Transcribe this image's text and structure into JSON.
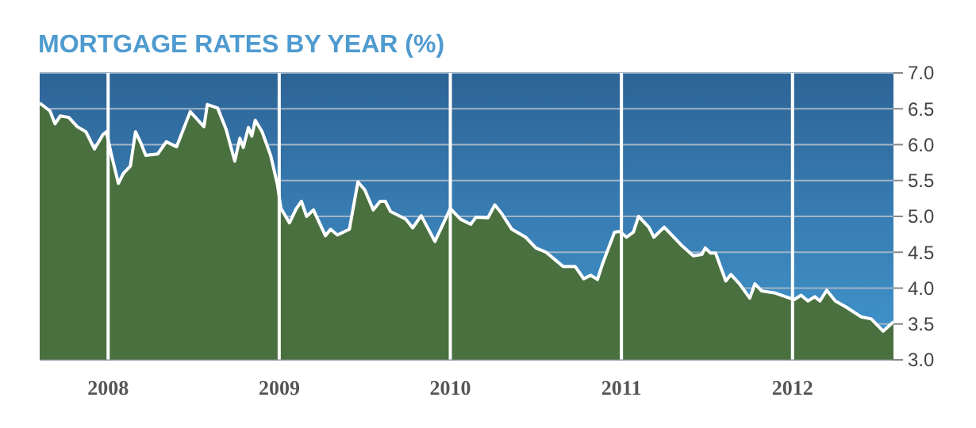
{
  "chart_data": {
    "type": "area",
    "title": "MORTGAGE RATES BY YEAR (%)",
    "x": [
      2007.6,
      2007.66,
      2007.69,
      2007.72,
      2007.77,
      2007.82,
      2007.87,
      2007.92,
      2007.97,
      2007.99,
      2008.02,
      2008.06,
      2008.09,
      2008.13,
      2008.16,
      2008.19,
      2008.22,
      2008.29,
      2008.34,
      2008.4,
      2008.48,
      2008.56,
      2008.58,
      2008.64,
      2008.69,
      2008.74,
      2008.77,
      2008.79,
      2008.82,
      2008.84,
      2008.86,
      2008.9,
      2008.95,
      2008.99,
      2009.01,
      2009.06,
      2009.1,
      2009.13,
      2009.16,
      2009.2,
      2009.27,
      2009.3,
      2009.34,
      2009.41,
      2009.46,
      2009.5,
      2009.55,
      2009.59,
      2009.62,
      2009.65,
      2009.74,
      2009.78,
      2009.83,
      2009.91,
      2010.0,
      2010.06,
      2010.12,
      2010.15,
      2010.22,
      2010.26,
      2010.3,
      2010.36,
      2010.44,
      2010.5,
      2010.56,
      2010.66,
      2010.73,
      2010.78,
      2010.82,
      2010.86,
      2010.89,
      2010.96,
      2010.99,
      2011.03,
      2011.07,
      2011.1,
      2011.16,
      2011.19,
      2011.25,
      2011.35,
      2011.42,
      2011.47,
      2011.49,
      2011.52,
      2011.55,
      2011.61,
      2011.64,
      2011.69,
      2011.75,
      2011.78,
      2011.82,
      2011.9,
      2011.96,
      2012.01,
      2012.05,
      2012.09,
      2012.13,
      2012.16,
      2012.2,
      2012.25,
      2012.31,
      2012.4,
      2012.46,
      2012.53,
      2012.59
    ],
    "series": [
      {
        "color": "#4a7040",
        "values": [
          6.58,
          6.47,
          6.29,
          6.4,
          6.38,
          6.25,
          6.18,
          5.94,
          6.14,
          6.18,
          5.85,
          5.46,
          5.6,
          5.7,
          6.18,
          6.03,
          5.85,
          5.87,
          6.04,
          5.97,
          6.46,
          6.25,
          6.56,
          6.51,
          6.21,
          5.77,
          6.09,
          5.96,
          6.24,
          6.12,
          6.34,
          6.18,
          5.85,
          5.44,
          5.11,
          4.91,
          5.11,
          5.21,
          5.0,
          5.09,
          4.73,
          4.82,
          4.74,
          4.82,
          5.48,
          5.37,
          5.09,
          5.21,
          5.21,
          5.07,
          4.96,
          4.84,
          5.01,
          4.65,
          5.11,
          4.96,
          4.89,
          4.99,
          4.98,
          5.16,
          5.04,
          4.82,
          4.71,
          4.56,
          4.5,
          4.3,
          4.3,
          4.13,
          4.18,
          4.12,
          4.34,
          4.78,
          4.79,
          4.71,
          4.78,
          5.0,
          4.85,
          4.71,
          4.85,
          4.6,
          4.45,
          4.47,
          4.56,
          4.49,
          4.49,
          4.1,
          4.19,
          4.06,
          3.86,
          4.06,
          3.96,
          3.93,
          3.88,
          3.84,
          3.9,
          3.82,
          3.88,
          3.82,
          3.97,
          3.82,
          3.74,
          3.6,
          3.57,
          3.4,
          3.53
        ]
      }
    ],
    "xlim": [
      2007.6,
      2012.59
    ],
    "xticks": [
      2008,
      2009,
      2010,
      2011,
      2012
    ],
    "ylim": [
      3,
      7
    ],
    "yticks": [
      {
        "value": 3,
        "label": "3.0"
      },
      {
        "value": 3.5,
        "label": "3.5"
      },
      {
        "value": 4,
        "label": "4.0"
      },
      {
        "value": 4.5,
        "label": "4.5"
      },
      {
        "value": 5,
        "label": "5.0"
      },
      {
        "value": 5.5,
        "label": "5.5"
      },
      {
        "value": 6,
        "label": "6.0"
      },
      {
        "value": 6.5,
        "label": "6.5"
      },
      {
        "value": 7,
        "label": "7.0"
      }
    ],
    "grid": true
  }
}
